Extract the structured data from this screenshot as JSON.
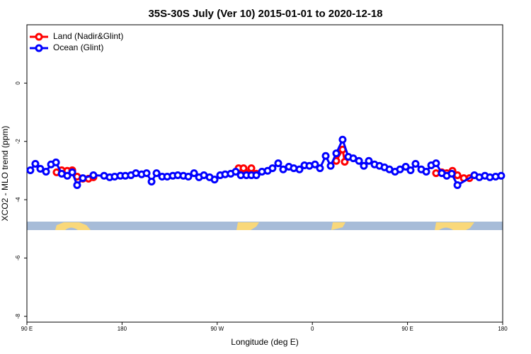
{
  "chart_data": {
    "type": "line",
    "title": "35S-30S July (Ver 10)   2015-01-01 to 2020-12-18",
    "x_label": "Longitude (deg E)",
    "y_label": "XCO2 - MLO trend (ppm)",
    "xlim": [
      90,
      540
    ],
    "ylim": [
      -8.2,
      2.0
    ],
    "xticks": [
      {
        "value": 90,
        "label": "90 E"
      },
      {
        "value": 180,
        "label": "180"
      },
      {
        "value": 270,
        "label": "90 W"
      },
      {
        "value": 360,
        "label": "0"
      },
      {
        "value": 450,
        "label": "90 E"
      },
      {
        "value": 540,
        "label": "180"
      }
    ],
    "yticks": [
      0,
      -2,
      -4,
      -6,
      -8
    ],
    "legend": "top-left",
    "series": [
      {
        "name": "Land (Nadir&Glint)",
        "color": "#ff0000",
        "x": [
          118.1,
          122.9,
          128.2,
          132.9,
          137.5,
          142.9,
          148.3,
          152.9,
          220,
          290.2,
          294.9,
          297.6,
          302.3,
          307.0,
          340,
          382.6,
          388.6,
          390.6,
          440,
          477.0,
          482.4,
          487.1,
          492.5,
          497.2,
          503.2,
          508.6
        ],
        "values": [
          -3.06,
          -2.99,
          -3.01,
          -2.99,
          -3.21,
          -3.28,
          -3.28,
          -3.23,
          null,
          -2.92,
          -2.92,
          -3.09,
          -2.92,
          -3.11,
          null,
          -2.67,
          -2.28,
          -2.7,
          null,
          -3.09,
          -3.06,
          -3.09,
          -3.01,
          -3.16,
          -3.26,
          -3.26
        ]
      },
      {
        "name": "Ocean (Glint)",
        "color": "#0000ff",
        "x": [
          93.3,
          98.0,
          102.7,
          108.1,
          112.8,
          117.5,
          122.9,
          128.2,
          132.9,
          137.5,
          142.9,
          152.9,
          163.0,
          168.3,
          173.0,
          178.4,
          183.1,
          188.4,
          193.1,
          198.5,
          203.2,
          207.9,
          212.6,
          217.9,
          222.7,
          228.0,
          232.7,
          238.0,
          242.7,
          248.1,
          252.8,
          257.4,
          262.8,
          267.5,
          272.8,
          277.5,
          282.8,
          287.5,
          292.3,
          297.6,
          302.3,
          307.0,
          312.3,
          317.7,
          322.3,
          327.7,
          332.4,
          337.8,
          342.4,
          347.8,
          352.5,
          357.2,
          362.5,
          367.2,
          372.6,
          377.3,
          382.6,
          388.6,
          394.0,
          398.7,
          404.1,
          408.7,
          413.4,
          418.8,
          423.5,
          428.2,
          432.9,
          438.2,
          442.9,
          448.3,
          452.9,
          457.6,
          463.0,
          467.7,
          472.4,
          477.0,
          482.4,
          487.1,
          491.8,
          497.2,
          513.2,
          517.9,
          523.2,
          527.9,
          533.3,
          538.6
        ],
        "values": [
          -2.99,
          -2.77,
          -2.94,
          -3.04,
          -2.79,
          -2.72,
          -3.11,
          -3.18,
          -3.06,
          -3.5,
          -3.26,
          -3.16,
          -3.18,
          -3.23,
          -3.21,
          -3.18,
          -3.18,
          -3.16,
          -3.09,
          -3.13,
          -3.09,
          -3.38,
          -3.09,
          -3.21,
          -3.21,
          -3.18,
          -3.16,
          -3.18,
          -3.21,
          -3.09,
          -3.23,
          -3.16,
          -3.23,
          -3.31,
          -3.16,
          -3.13,
          -3.11,
          -3.04,
          -3.16,
          -3.16,
          -3.16,
          -3.16,
          -3.04,
          -3.01,
          -2.92,
          -2.75,
          -2.96,
          -2.87,
          -2.92,
          -2.96,
          -2.82,
          -2.84,
          -2.79,
          -2.92,
          -2.5,
          -2.84,
          -2.41,
          -1.94,
          -2.53,
          -2.58,
          -2.67,
          -2.84,
          -2.67,
          -2.79,
          -2.84,
          -2.89,
          -2.96,
          -3.04,
          -2.96,
          -2.87,
          -2.99,
          -2.77,
          -2.96,
          -3.04,
          -2.82,
          -2.75,
          -3.09,
          -3.18,
          -3.11,
          -3.5,
          -3.16,
          -3.23,
          -3.18,
          -3.23,
          -3.21,
          -3.18
        ]
      }
    ]
  }
}
